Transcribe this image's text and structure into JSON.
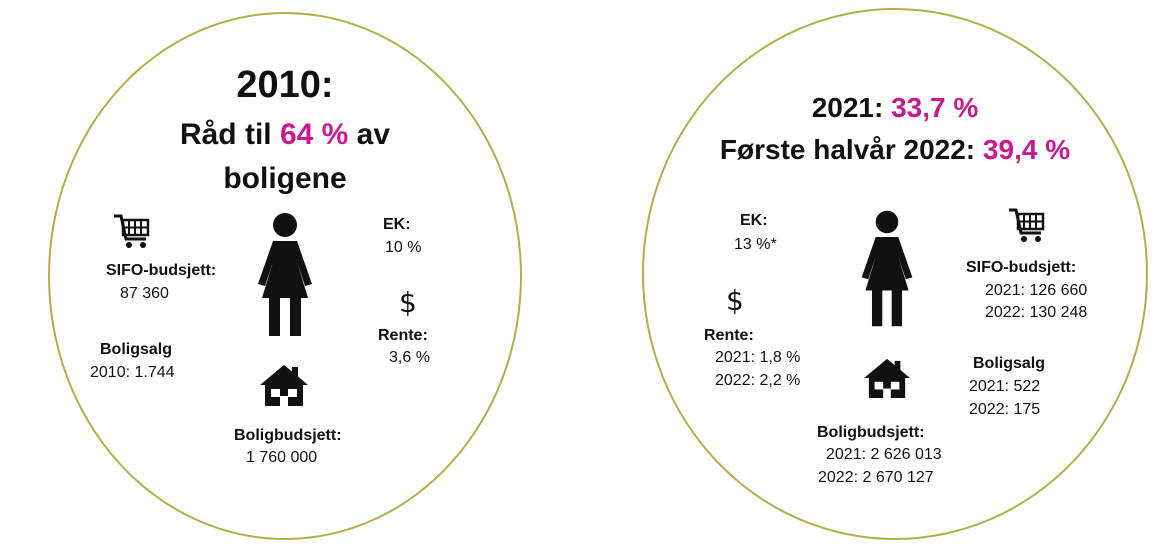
{
  "left": {
    "title_year": "2010:",
    "line2_pre": "Råd til ",
    "line2_highlight": "64 %",
    "line2_post": " av",
    "line3": "boligene",
    "sifo": {
      "label": "SIFO-budsjett:",
      "value": "87 360"
    },
    "ek": {
      "label": "EK:",
      "value": "10 %"
    },
    "rente": {
      "label": "Rente:",
      "value": "3,6 %"
    },
    "boligsalg": {
      "label": "Boligsalg",
      "value": "2010: 1.744"
    },
    "boligbudsjett": {
      "label": "Boligbudsjett:",
      "value": "1 760 000"
    }
  },
  "right": {
    "line1_pre": "2021: ",
    "line1_highlight": "33,7 %",
    "line2_pre": "Første halvår 2022: ",
    "line2_highlight": "39,4 %",
    "ek": {
      "label": "EK:",
      "value": "13 %*"
    },
    "sifo": {
      "label": "SIFO-budsjett:",
      "values": [
        "2021: 126 660",
        "2022: 130 248"
      ]
    },
    "rente": {
      "label": "Rente:",
      "values": [
        "2021: 1,8 %",
        "2022: 2,2 %"
      ]
    },
    "boligsalg": {
      "label": "Boligsalg",
      "values": [
        "2021: 522",
        "2022: 175"
      ]
    },
    "boligbudsjett": {
      "label": "Boligbudsjett:",
      "values": [
        "2021: 2 626 013",
        "2022: 2 670 127"
      ]
    }
  },
  "colors": {
    "highlight": "#c8198f",
    "circle_border": "#b5ad4a"
  },
  "icons": [
    "shopping-cart-icon",
    "woman-icon",
    "dollar-icon",
    "house-icon"
  ]
}
